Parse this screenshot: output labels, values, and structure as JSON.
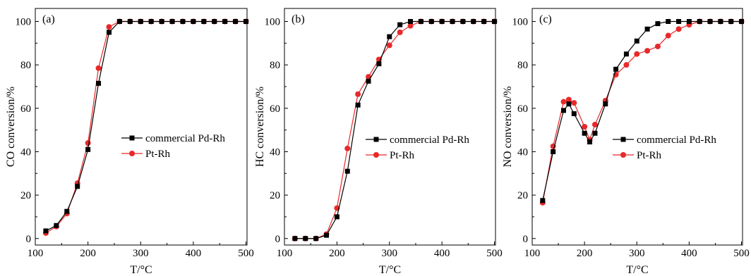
{
  "figure": {
    "x_label": "T/°C",
    "x_ticks": [
      100,
      200,
      300,
      400,
      500
    ],
    "y_ticks": [
      0,
      20,
      40,
      60,
      80,
      100
    ]
  },
  "chart_data": [
    {
      "type": "line",
      "panel_label": "(a)",
      "xlabel": "T/°C",
      "ylabel": "CO conversion/%",
      "xlim": [
        100,
        500
      ],
      "ylim": [
        0,
        100
      ],
      "grid": false,
      "legend_position": "center-right",
      "series": [
        {
          "name": "commercial Pd-Rh",
          "color": "#000000",
          "marker": "square",
          "x": [
            120,
            140,
            160,
            180,
            200,
            220,
            240,
            260,
            280,
            300,
            320,
            340,
            360,
            380,
            400,
            420,
            440,
            460,
            480,
            500
          ],
          "y": [
            3.5,
            6,
            12.5,
            24,
            41,
            71.5,
            95,
            100,
            100,
            100,
            100,
            100,
            100,
            100,
            100,
            100,
            100,
            100,
            100,
            100
          ]
        },
        {
          "name": "Pt-Rh",
          "color": "#e8292b",
          "marker": "circle",
          "x": [
            120,
            140,
            160,
            180,
            200,
            220,
            240,
            260,
            280,
            300,
            320,
            340,
            360,
            380,
            400,
            420,
            440,
            460,
            480,
            500
          ],
          "y": [
            2.5,
            5.5,
            11.5,
            25.5,
            44,
            78.5,
            97.5,
            100,
            100,
            100,
            100,
            100,
            100,
            100,
            100,
            100,
            100,
            100,
            100,
            100
          ]
        }
      ]
    },
    {
      "type": "line",
      "panel_label": "(b)",
      "xlabel": "T/°C",
      "ylabel": "HC conversion/%",
      "xlim": [
        100,
        500
      ],
      "ylim": [
        0,
        100
      ],
      "grid": false,
      "legend_position": "center-right",
      "series": [
        {
          "name": "commercial Pd-Rh",
          "color": "#000000",
          "marker": "square",
          "x": [
            120,
            140,
            160,
            180,
            200,
            220,
            240,
            260,
            280,
            300,
            320,
            340,
            360,
            380,
            400,
            420,
            440,
            460,
            480,
            500
          ],
          "y": [
            0,
            0,
            0,
            1.5,
            10,
            31,
            61.5,
            72.5,
            80.5,
            93,
            98.5,
            100,
            100,
            100,
            100,
            100,
            100,
            100,
            100,
            100
          ]
        },
        {
          "name": "Pt-Rh",
          "color": "#e8292b",
          "marker": "circle",
          "x": [
            120,
            140,
            160,
            180,
            200,
            220,
            240,
            260,
            280,
            300,
            320,
            340,
            360,
            380,
            400,
            420,
            440,
            460,
            480,
            500
          ],
          "y": [
            0,
            0,
            0,
            2,
            14,
            41.5,
            66.5,
            74.5,
            82.5,
            89,
            95,
            98,
            100,
            100,
            100,
            100,
            100,
            100,
            100,
            100
          ]
        }
      ]
    },
    {
      "type": "line",
      "panel_label": "(c)",
      "xlabel": "T/°C",
      "ylabel": "NO conversion/%",
      "xlim": [
        100,
        500
      ],
      "ylim": [
        0,
        100
      ],
      "grid": false,
      "legend_position": "center-right",
      "series": [
        {
          "name": "commercial Pd-Rh",
          "color": "#000000",
          "marker": "square",
          "x": [
            120,
            140,
            160,
            170,
            180,
            200,
            210,
            220,
            240,
            260,
            280,
            300,
            320,
            340,
            360,
            380,
            400,
            420,
            440,
            460,
            480,
            500
          ],
          "y": [
            17.5,
            40,
            59,
            62,
            57.5,
            48.5,
            44.5,
            48.5,
            62,
            78,
            85,
            91,
            96.5,
            99,
            100,
            100,
            100,
            100,
            100,
            100,
            100,
            100
          ]
        },
        {
          "name": "Pt-Rh",
          "color": "#e8292b",
          "marker": "circle",
          "x": [
            120,
            140,
            160,
            170,
            180,
            200,
            210,
            220,
            240,
            260,
            280,
            300,
            320,
            340,
            360,
            380,
            400,
            420,
            440,
            460,
            480,
            500
          ],
          "y": [
            16.5,
            42.5,
            63,
            64,
            62.5,
            51.5,
            45.5,
            52.5,
            63.5,
            75.5,
            80,
            85,
            86.5,
            88.5,
            93.5,
            96.5,
            98.5,
            100,
            100,
            100,
            100,
            100
          ]
        }
      ]
    }
  ]
}
